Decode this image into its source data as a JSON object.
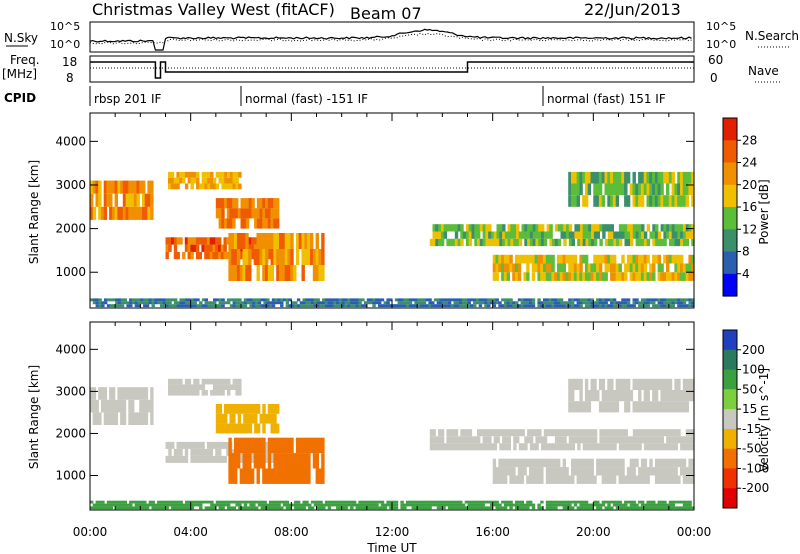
{
  "header": {
    "station": "Christmas Valley West (fitACF)",
    "beam": "Beam 07",
    "date": "22/Jun/2013"
  },
  "top_panels": {
    "nsky_label": "N.Sky",
    "nsearch_label": "N.Search",
    "nsky_ticks": [
      "10^5",
      "10^0"
    ],
    "nsearch_ticks": [
      "10^5",
      "10^0"
    ],
    "freq_label": "Freq.",
    "freq_unit": "[MHz]",
    "freq_ticks": [
      "18",
      "8"
    ],
    "nave_label": "Nave",
    "nave_ticks": [
      "60",
      "0"
    ],
    "cpid_label": "CPID",
    "cpid_segments": [
      {
        "label": "rbsp 201 IF",
        "start": 0,
        "end": 6
      },
      {
        "label": "normal (fast) -151 IF",
        "start": 6,
        "end": 18
      },
      {
        "label": "normal (fast) 151 IF",
        "start": 18,
        "end": 24
      }
    ]
  },
  "chart_data": [
    {
      "type": "heatmap",
      "name": "power",
      "ylabel": "Slant Range [km]",
      "xlabel": "Time UT",
      "xlim": [
        0,
        24
      ],
      "ylim": [
        180,
        4650
      ],
      "x_ticks": [
        "00:00",
        "04:00",
        "08:00",
        "12:00",
        "16:00",
        "20:00",
        "00:00"
      ],
      "y_ticks": [
        1000,
        2000,
        3000,
        4000
      ],
      "colorbar": {
        "label": "Power [dB]",
        "range": [
          0,
          32
        ],
        "ticks": [
          4,
          8,
          12,
          16,
          20,
          24,
          28
        ],
        "colors": [
          "#0000ff",
          "#2a5fb0",
          "#3b8f6b",
          "#5cbd3a",
          "#f0c000",
          "#f09000",
          "#f05a00",
          "#e02000"
        ]
      },
      "bands": [
        {
          "t0": 0.0,
          "t1": 2.5,
          "r0": 2200,
          "r1": 3100,
          "level": 22
        },
        {
          "t0": 3.1,
          "t1": 6.0,
          "r0": 2900,
          "r1": 3300,
          "level": 20
        },
        {
          "t0": 3.0,
          "t1": 7.5,
          "r0": 1300,
          "r1": 1800,
          "level": 26
        },
        {
          "t0": 5.0,
          "t1": 7.5,
          "r0": 2000,
          "r1": 2700,
          "level": 24
        },
        {
          "t0": 5.5,
          "t1": 9.3,
          "r0": 800,
          "r1": 1900,
          "level": 22
        },
        {
          "t0": 13.5,
          "t1": 24.0,
          "r0": 1600,
          "r1": 2100,
          "level": 14
        },
        {
          "t0": 16.0,
          "t1": 24.0,
          "r0": 800,
          "r1": 1400,
          "level": 18
        },
        {
          "t0": 19.0,
          "t1": 24.0,
          "r0": 2500,
          "r1": 3300,
          "level": 14
        },
        {
          "t0": 0.0,
          "t1": 24.0,
          "r0": 200,
          "r1": 400,
          "level": 8
        }
      ]
    },
    {
      "type": "heatmap",
      "name": "velocity",
      "ylabel": "Slant Range [km]",
      "xlabel": "Time UT",
      "xlim": [
        0,
        24
      ],
      "ylim": [
        180,
        4650
      ],
      "x_ticks": [
        "00:00",
        "04:00",
        "08:00",
        "12:00",
        "16:00",
        "20:00",
        "00:00"
      ],
      "y_ticks": [
        1000,
        2000,
        3000,
        4000
      ],
      "colorbar": {
        "label": "Velocity [m s^-1]",
        "ticks": [
          200,
          100,
          50,
          15,
          -15,
          -50,
          -100,
          -200
        ],
        "colors": [
          "#2040c0",
          "#2a7a60",
          "#3aa040",
          "#7cd040",
          "#c8c8c0",
          "#f0b000",
          "#f07000",
          "#f03000",
          "#e00000"
        ]
      },
      "bands": [
        {
          "t0": 0.0,
          "t1": 2.5,
          "r0": 2200,
          "r1": 3100,
          "level": 0
        },
        {
          "t0": 3.1,
          "t1": 6.0,
          "r0": 2900,
          "r1": 3300,
          "level": 0
        },
        {
          "t0": 3.0,
          "t1": 7.5,
          "r0": 1300,
          "r1": 1800,
          "level": 0
        },
        {
          "t0": 5.0,
          "t1": 7.5,
          "r0": 2000,
          "r1": 2700,
          "level": -40
        },
        {
          "t0": 5.5,
          "t1": 9.3,
          "r0": 800,
          "r1": 1900,
          "level": -90
        },
        {
          "t0": 13.5,
          "t1": 24.0,
          "r0": 1600,
          "r1": 2100,
          "level": 0
        },
        {
          "t0": 16.0,
          "t1": 24.0,
          "r0": 800,
          "r1": 1400,
          "level": 0
        },
        {
          "t0": 19.0,
          "t1": 24.0,
          "r0": 2500,
          "r1": 3300,
          "level": 0
        },
        {
          "t0": 0.0,
          "t1": 24.0,
          "r0": 200,
          "r1": 400,
          "level": 60
        }
      ]
    }
  ]
}
